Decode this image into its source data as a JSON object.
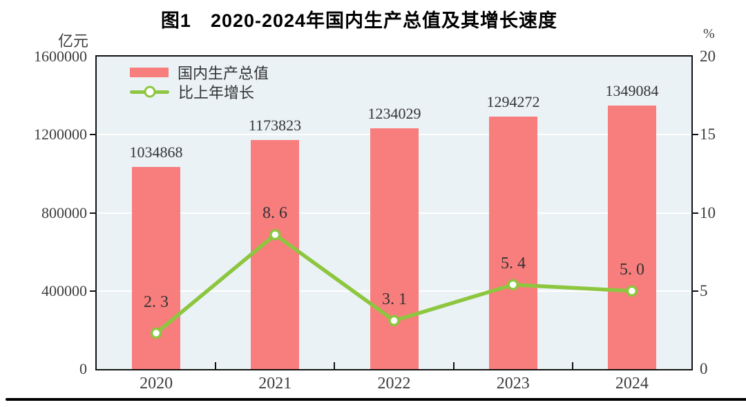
{
  "title": "图1　2020-2024年国内生产总值及其增长速度",
  "left_axis": {
    "unit": "亿元",
    "ticks": [
      "1600000",
      "1200000",
      "800000",
      "400000",
      "0"
    ]
  },
  "right_axis": {
    "unit": "%",
    "ticks": [
      "20",
      "15",
      "10",
      "5",
      "0"
    ]
  },
  "legend": [
    {
      "label": "国内生产总值",
      "type": "bar"
    },
    {
      "label": "比上年增长",
      "type": "line"
    }
  ],
  "colors": {
    "bar": "#F87D7D",
    "line": "#8DC63F",
    "plot_bg": "#EAF2F5",
    "grid": "#FFFFFF",
    "frame": "#111111",
    "text": "#3C3C3C",
    "label": "#333333",
    "rule": "#000000"
  },
  "chart_data": {
    "type": "bar",
    "title": "图1　2020-2024年国内生产总值及其增长速度",
    "categories": [
      "2020",
      "2021",
      "2022",
      "2023",
      "2024"
    ],
    "series": [
      {
        "name": "国内生产总值",
        "type": "bar",
        "axis": "left",
        "values": [
          1034868,
          1173823,
          1234029,
          1294272,
          1349084
        ],
        "labels": [
          "1034868",
          "1173823",
          "1234029",
          "1294272",
          "1349084"
        ]
      },
      {
        "name": "比上年增长",
        "type": "line",
        "axis": "right",
        "values": [
          2.3,
          8.6,
          3.1,
          5.4,
          5.0
        ],
        "labels": [
          "2. 3",
          "8. 6",
          "3. 1",
          "5. 4",
          "5. 0"
        ]
      }
    ],
    "xlabel": "",
    "ylabel_left": "亿元",
    "ylabel_right": "%",
    "left_ylim": [
      0,
      1600000
    ],
    "right_ylim": [
      0,
      20
    ],
    "grid": true,
    "legend_position": "top-left"
  }
}
